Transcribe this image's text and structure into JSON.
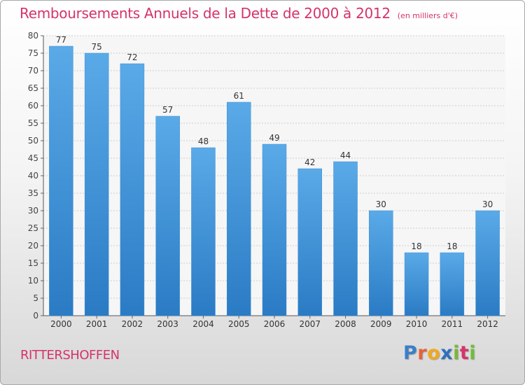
{
  "title": "Remboursements Annuels de la Dette de 2000 à 2012",
  "unit": "(en milliers d'€)",
  "commune": "RITTERSHOFFEN",
  "logo": {
    "letters": [
      "P",
      "r",
      "o",
      "x",
      "i",
      "t",
      "i"
    ],
    "colors": [
      "#3a7fc8",
      "#e8603a",
      "#f2a81d",
      "#2f6fbf",
      "#7cb53a",
      "#d5336a",
      "#6bbf3a"
    ]
  },
  "colors": {
    "bar": "#4a9be0",
    "accent": "#d5336a"
  },
  "chart_data": {
    "type": "bar",
    "categories": [
      "2000",
      "2001",
      "2002",
      "2003",
      "2004",
      "2005",
      "2006",
      "2007",
      "2008",
      "2009",
      "2010",
      "2011",
      "2012"
    ],
    "values": [
      77,
      75,
      72,
      57,
      48,
      61,
      49,
      42,
      44,
      30,
      18,
      18,
      30
    ],
    "ylim": [
      0,
      80
    ],
    "yticks": [
      0,
      5,
      10,
      15,
      20,
      25,
      30,
      35,
      40,
      45,
      50,
      55,
      60,
      65,
      70,
      75,
      80
    ],
    "xlabel": "",
    "ylabel": "",
    "grid": "horizontal",
    "data_labels": true
  }
}
